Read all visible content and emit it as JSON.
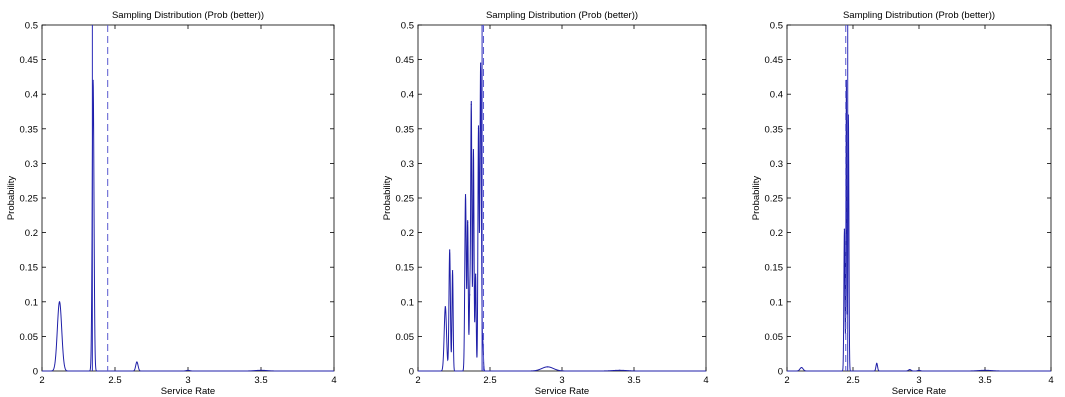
{
  "chart_data": [
    {
      "type": "line",
      "title": "Sampling Distribution (Prob (better))",
      "xlabel": "Service Rate",
      "ylabel": "Probability",
      "xlim": [
        2,
        4
      ],
      "ylim": [
        0,
        0.5
      ],
      "xticks": [
        2,
        2.5,
        3,
        3.5,
        4
      ],
      "xtick_labels": [
        "2",
        "2.5",
        "3",
        "3.5",
        "4"
      ],
      "yticks": [
        0,
        0.05,
        0.1,
        0.15,
        0.2,
        0.25,
        0.3,
        0.35,
        0.4,
        0.45,
        0.5
      ],
      "ytick_labels": [
        "0",
        "0.05",
        "0.1",
        "0.15",
        "0.2",
        "0.25",
        "0.3",
        "0.35",
        "0.4",
        "0.45",
        "0.5"
      ],
      "grid": false,
      "peaks": [
        {
          "x": 2.12,
          "width": 0.015,
          "height": 0.1
        },
        {
          "x": 2.35,
          "width": 0.006,
          "height": 0.42
        },
        {
          "x": 2.65,
          "width": 0.008,
          "height": 0.013
        },
        {
          "x": 3.0,
          "width": 0.012,
          "height": 0.001
        },
        {
          "x": 3.5,
          "width": 0.04,
          "height": 0.001
        }
      ],
      "vline_solid": 2.345,
      "vline_dashed": 2.45
    },
    {
      "type": "line",
      "title": "Sampling Distribution (Prob (better))",
      "xlabel": "Service Rate",
      "ylabel": "Probability",
      "xlim": [
        2,
        4
      ],
      "ylim": [
        0,
        0.5
      ],
      "xticks": [
        2,
        2.5,
        3,
        3.5,
        4
      ],
      "xtick_labels": [
        "2",
        "2.5",
        "3",
        "3.5",
        "4"
      ],
      "yticks": [
        0,
        0.05,
        0.1,
        0.15,
        0.2,
        0.25,
        0.3,
        0.35,
        0.4,
        0.45,
        0.5
      ],
      "ytick_labels": [
        "0",
        "0.05",
        "0.1",
        "0.15",
        "0.2",
        "0.25",
        "0.3",
        "0.35",
        "0.4",
        "0.45",
        "0.5"
      ],
      "grid": false,
      "peaks": [
        {
          "x": 2.19,
          "width": 0.008,
          "height": 0.093
        },
        {
          "x": 2.22,
          "width": 0.005,
          "height": 0.175
        },
        {
          "x": 2.24,
          "width": 0.004,
          "height": 0.145
        },
        {
          "x": 2.33,
          "width": 0.005,
          "height": 0.255
        },
        {
          "x": 2.345,
          "width": 0.004,
          "height": 0.215
        },
        {
          "x": 2.36,
          "width": 0.004,
          "height": 0.11
        },
        {
          "x": 2.37,
          "width": 0.004,
          "height": 0.385
        },
        {
          "x": 2.385,
          "width": 0.004,
          "height": 0.32
        },
        {
          "x": 2.4,
          "width": 0.004,
          "height": 0.14
        },
        {
          "x": 2.42,
          "width": 0.004,
          "height": 0.35
        },
        {
          "x": 2.435,
          "width": 0.005,
          "height": 0.445
        },
        {
          "x": 2.45,
          "width": 0.004,
          "height": 0.04
        },
        {
          "x": 2.9,
          "width": 0.04,
          "height": 0.006
        },
        {
          "x": 3.4,
          "width": 0.05,
          "height": 0.001
        }
      ],
      "vline_solid": 2.445,
      "vline_dashed": 2.455
    },
    {
      "type": "line",
      "title": "Sampling Distribution (Prob (better))",
      "xlabel": "Service Rate",
      "ylabel": "Probability",
      "xlim": [
        2,
        4
      ],
      "ylim": [
        0,
        0.5
      ],
      "xticks": [
        2,
        2.5,
        3,
        3.5,
        4
      ],
      "xtick_labels": [
        "2",
        "2.5",
        "3",
        "3.5",
        "4"
      ],
      "yticks": [
        0,
        0.05,
        0.1,
        0.15,
        0.2,
        0.25,
        0.3,
        0.35,
        0.4,
        0.45,
        0.5
      ],
      "ytick_labels": [
        "0",
        "0.05",
        "0.1",
        "0.15",
        "0.2",
        "0.25",
        "0.3",
        "0.35",
        "0.4",
        "0.45",
        "0.5"
      ],
      "grid": false,
      "peaks": [
        {
          "x": 2.11,
          "width": 0.012,
          "height": 0.005
        },
        {
          "x": 2.435,
          "width": 0.004,
          "height": 0.205
        },
        {
          "x": 2.45,
          "width": 0.003,
          "height": 0.42
        },
        {
          "x": 2.465,
          "width": 0.004,
          "height": 0.37
        },
        {
          "x": 2.68,
          "width": 0.006,
          "height": 0.011
        },
        {
          "x": 2.93,
          "width": 0.01,
          "height": 0.002
        },
        {
          "x": 3.0,
          "width": 0.01,
          "height": 0.001
        },
        {
          "x": 3.5,
          "width": 0.05,
          "height": 0.001
        }
      ],
      "vline_solid": 2.46,
      "vline_dashed": 2.445
    }
  ]
}
